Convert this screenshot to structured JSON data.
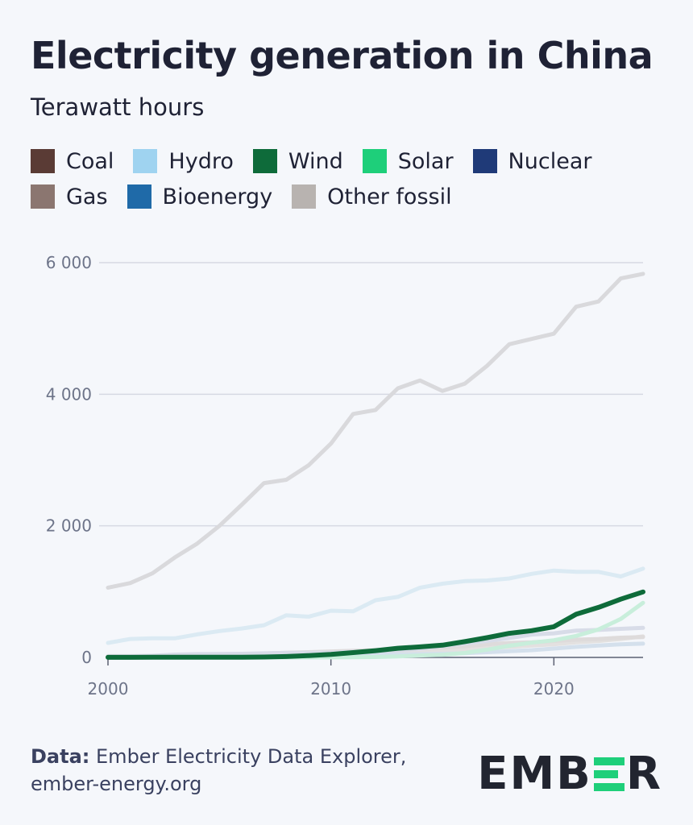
{
  "header": {
    "title": "Electricity generation in China",
    "subtitle": "Terawatt hours"
  },
  "legend": [
    {
      "label": "Coal",
      "color": "#5a3b35"
    },
    {
      "label": "Hydro",
      "color": "#9fd3f0"
    },
    {
      "label": "Wind",
      "color": "#0e6b3a"
    },
    {
      "label": "Solar",
      "color": "#1ecf7a"
    },
    {
      "label": "Nuclear",
      "color": "#1f3a78"
    },
    {
      "label": "Gas",
      "color": "#8b7670"
    },
    {
      "label": "Bioenergy",
      "color": "#1f6aa8"
    },
    {
      "label": "Other fossil",
      "color": "#b8b3b0"
    }
  ],
  "chart_data": {
    "type": "line",
    "title": "Electricity generation in China",
    "ylabel": "Terawatt hours",
    "xlabel": "",
    "ylim": [
      0,
      6000
    ],
    "xlim": [
      2000,
      2024
    ],
    "y_ticks": [
      {
        "value": 0,
        "label": "0"
      },
      {
        "value": 2000,
        "label": "2 000"
      },
      {
        "value": 4000,
        "label": "4 000"
      },
      {
        "value": 6000,
        "label": "6 000"
      }
    ],
    "x_ticks": [
      {
        "value": 2000,
        "label": "2000"
      },
      {
        "value": 2010,
        "label": "2010"
      },
      {
        "value": 2020,
        "label": "2020"
      }
    ],
    "grid": true,
    "highlight": "Wind",
    "x": [
      2000,
      2001,
      2002,
      2003,
      2004,
      2005,
      2006,
      2007,
      2008,
      2009,
      2010,
      2011,
      2012,
      2013,
      2014,
      2015,
      2016,
      2017,
      2018,
      2019,
      2020,
      2021,
      2022,
      2023,
      2024
    ],
    "series": [
      {
        "name": "Coal",
        "color": "#d9d9dc",
        "values": [
          1060,
          1130,
          1280,
          1520,
          1730,
          2000,
          2320,
          2650,
          2700,
          2920,
          3250,
          3700,
          3760,
          4090,
          4210,
          4050,
          4160,
          4430,
          4760,
          4840,
          4920,
          5330,
          5410,
          5760,
          5830
        ]
      },
      {
        "name": "Hydro",
        "color": "#dbeaf3",
        "values": [
          220,
          280,
          290,
          290,
          350,
          400,
          440,
          490,
          640,
          620,
          710,
          700,
          870,
          920,
          1060,
          1120,
          1160,
          1170,
          1200,
          1270,
          1320,
          1300,
          1300,
          1230,
          1350
        ]
      },
      {
        "name": "Other fossil",
        "color": "#e3e1e0",
        "values": [
          10,
          12,
          14,
          16,
          18,
          20,
          25,
          30,
          40,
          50,
          60,
          70,
          80,
          90,
          100,
          110,
          120,
          140,
          160,
          180,
          200,
          230,
          250,
          280,
          320
        ]
      },
      {
        "name": "Gas",
        "color": "#dedbdb",
        "values": [
          20,
          20,
          22,
          22,
          25,
          28,
          40,
          60,
          70,
          80,
          90,
          100,
          110,
          120,
          130,
          150,
          170,
          200,
          220,
          230,
          250,
          270,
          280,
          300,
          310
        ]
      },
      {
        "name": "Nuclear",
        "color": "#d8dce8",
        "values": [
          16,
          17,
          25,
          43,
          50,
          53,
          55,
          62,
          68,
          70,
          74,
          86,
          97,
          112,
          130,
          171,
          213,
          248,
          295,
          348,
          366,
          408,
          418,
          435,
          450
        ]
      },
      {
        "name": "Bioenergy",
        "color": "#d4e0ec",
        "values": [
          2,
          3,
          4,
          5,
          6,
          8,
          10,
          15,
          20,
          25,
          30,
          35,
          40,
          45,
          50,
          55,
          65,
          80,
          95,
          110,
          135,
          160,
          180,
          200,
          210
        ]
      },
      {
        "name": "Solar",
        "color": "#c8eedb",
        "values": [
          0,
          0,
          0,
          0,
          0,
          0,
          0,
          0,
          0,
          0,
          1,
          3,
          6,
          15,
          29,
          40,
          67,
          118,
          177,
          224,
          261,
          327,
          425,
          584,
          830
        ]
      },
      {
        "name": "Wind",
        "color": "#0e6b3a",
        "values": [
          1,
          1,
          2,
          2,
          2,
          3,
          4,
          6,
          13,
          28,
          45,
          74,
          103,
          140,
          160,
          186,
          240,
          300,
          366,
          406,
          467,
          656,
          760,
          885,
          995
        ]
      }
    ]
  },
  "footer": {
    "data_label": "Data:",
    "source_line1": " Ember Electricity Data Explorer,",
    "source_line2": "ember-energy.org"
  },
  "logo": {
    "part1": "EMB",
    "part2": "R"
  }
}
